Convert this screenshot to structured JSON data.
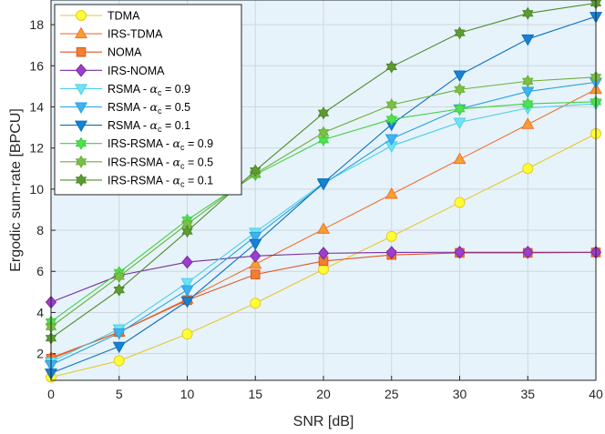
{
  "chart_data": {
    "type": "line",
    "xlabel": "SNR [dB]",
    "ylabel": "Ergodic sum-rate [BPCU]",
    "x": [
      0,
      5,
      10,
      15,
      20,
      25,
      30,
      35,
      40
    ],
    "xlim": [
      0,
      40
    ],
    "ylim": [
      0.7,
      19.2
    ],
    "xticks": [
      0,
      5,
      10,
      15,
      20,
      25,
      30,
      35,
      40
    ],
    "yticks": [
      2,
      4,
      6,
      8,
      10,
      12,
      14,
      16,
      18
    ],
    "grid": true,
    "legend_position": "top-left",
    "background_color": "#e6f3fb",
    "series": [
      {
        "name": "TDMA",
        "color": "#e8c829",
        "fill": "#ffff33",
        "marker": "circle",
        "values": [
          0.85,
          1.65,
          2.95,
          4.45,
          6.1,
          7.7,
          9.35,
          11.0,
          12.7
        ]
      },
      {
        "name": "IRS-TDMA",
        "color": "#f07030",
        "fill": "#f5a030",
        "marker": "triangle-up",
        "values": [
          1.8,
          3.05,
          4.65,
          6.35,
          8.05,
          9.75,
          11.45,
          13.15,
          14.85
        ]
      },
      {
        "name": "NOMA",
        "color": "#e05520",
        "fill": "#f07f30",
        "marker": "square",
        "values": [
          1.75,
          3.05,
          4.6,
          5.85,
          6.5,
          6.8,
          6.9,
          6.9,
          6.92
        ]
      },
      {
        "name": "IRS-NOMA",
        "color": "#7a2b9e",
        "fill": "#9b3fd0",
        "marker": "diamond",
        "values": [
          4.5,
          5.8,
          6.45,
          6.75,
          6.88,
          6.92,
          6.93,
          6.93,
          6.93
        ]
      },
      {
        "name": "RSMA - αc = 0.9",
        "label_main": "RSMA - ",
        "label_sub": "c",
        "label_rest": " = 0.9",
        "color": "#4ecfe6",
        "fill": "#6fe3f3",
        "marker": "triangle-down",
        "values": [
          1.6,
          3.2,
          5.45,
          7.9,
          10.3,
          12.1,
          13.25,
          13.95,
          14.15
        ]
      },
      {
        "name": "RSMA - αc = 0.5",
        "label_main": "RSMA - ",
        "label_sub": "c",
        "label_rest": " = 0.5",
        "color": "#2aa0e0",
        "fill": "#3db3f0",
        "marker": "triangle-down",
        "values": [
          1.45,
          3.0,
          5.1,
          7.7,
          10.25,
          12.45,
          13.9,
          14.75,
          15.2
        ]
      },
      {
        "name": "RSMA - αc = 0.1",
        "label_main": "RSMA - ",
        "label_sub": "c",
        "label_rest": " = 0.1",
        "color": "#0a6fc0",
        "fill": "#1a80d0",
        "marker": "triangle-down",
        "values": [
          1.05,
          2.35,
          4.55,
          7.35,
          10.3,
          13.15,
          15.55,
          17.3,
          18.4
        ]
      },
      {
        "name": "IRS-RSMA - αc = 0.9",
        "label_main": "IRS-RSMA - ",
        "label_sub": "c",
        "label_rest": " = 0.9",
        "color": "#40d040",
        "fill": "#50e050",
        "marker": "hexagram",
        "values": [
          3.55,
          5.95,
          8.5,
          10.7,
          12.4,
          13.4,
          13.9,
          14.15,
          14.25
        ]
      },
      {
        "name": "IRS-RSMA - αc = 0.5",
        "label_main": "IRS-RSMA - ",
        "label_sub": "c",
        "label_rest": " = 0.5",
        "color": "#6cae3a",
        "fill": "#7bbf45",
        "marker": "hexagram",
        "values": [
          3.3,
          5.75,
          8.3,
          10.75,
          12.75,
          14.1,
          14.85,
          15.25,
          15.45
        ]
      },
      {
        "name": "IRS-RSMA - αc = 0.1",
        "label_main": "IRS-RSMA - ",
        "label_sub": "c",
        "label_rest": " = 0.1",
        "color": "#4f8a2a",
        "fill": "#5d9a32",
        "marker": "hexagram",
        "values": [
          2.75,
          5.1,
          7.95,
          10.9,
          13.7,
          15.95,
          17.6,
          18.55,
          19.05
        ]
      }
    ]
  }
}
